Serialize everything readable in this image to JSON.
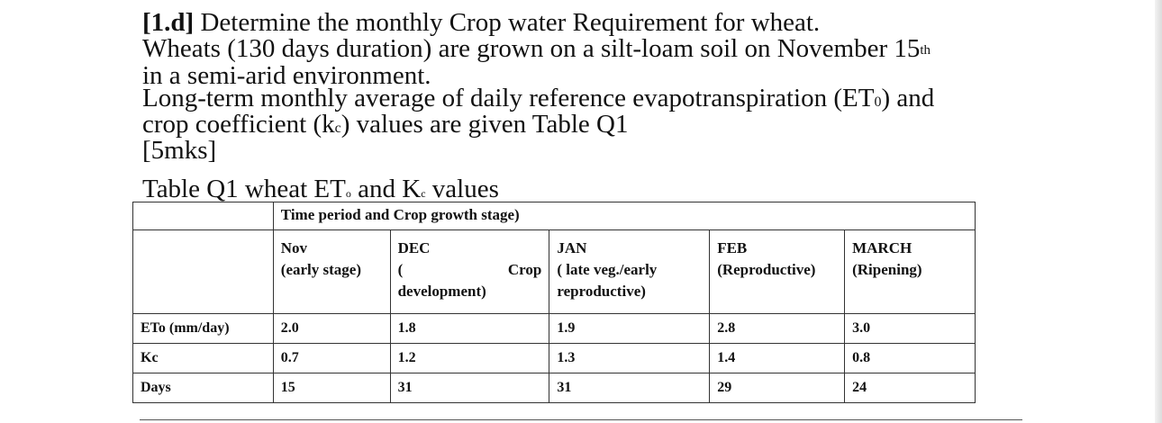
{
  "question": {
    "number": "[1.d]",
    "title": "Determine the monthly Crop water Requirement for wheat.",
    "line2_main": "Wheats (130 days duration) are grown on a silt-loam soil on November 15",
    "line2_sup": "th",
    "line3": "in a semi-arid environment.",
    "line4_pre": "Long-term monthly average of daily reference evapotranspiration (ET",
    "line4_sub": "0",
    "line4_post": ") and",
    "line5_pre": "crop coefficient (k",
    "line5_sub": "c",
    "line5_post": ") values are given Table Q1",
    "marks": "[5mks]"
  },
  "table_caption": {
    "pre": "Table Q1 wheat ET",
    "sub1": "o",
    "mid": " and K",
    "sub2": "c",
    "post": " values"
  },
  "table": {
    "header": "Time period and Crop growth stage)",
    "months": [
      {
        "month": "Nov",
        "stage": "(early stage)"
      },
      {
        "month": "DEC",
        "stage_a": "(",
        "stage_b": "Crop",
        "stage_c": "development)"
      },
      {
        "month": "JAN",
        "stage_a": "( late veg./early",
        "stage_c": "reproductive)"
      },
      {
        "month": "FEB",
        "stage": "(Reproductive)"
      },
      {
        "month": "MARCH",
        "stage": "(Ripening)"
      }
    ],
    "rows": [
      {
        "label_main": "ET",
        "label_sub": "o",
        "label_post": " (mm/day)",
        "values": [
          "2.0",
          "1.8",
          "1.9",
          "2.8",
          "3.0"
        ]
      },
      {
        "label_main": "K",
        "label_sub": "c",
        "label_post": "",
        "values": [
          "0.7",
          "1.2",
          "1.3",
          "1.4",
          "0.8"
        ]
      },
      {
        "label_main": "Days",
        "label_sub": "",
        "label_post": "",
        "values": [
          "15",
          "31",
          "31",
          "29",
          "24"
        ]
      }
    ]
  }
}
